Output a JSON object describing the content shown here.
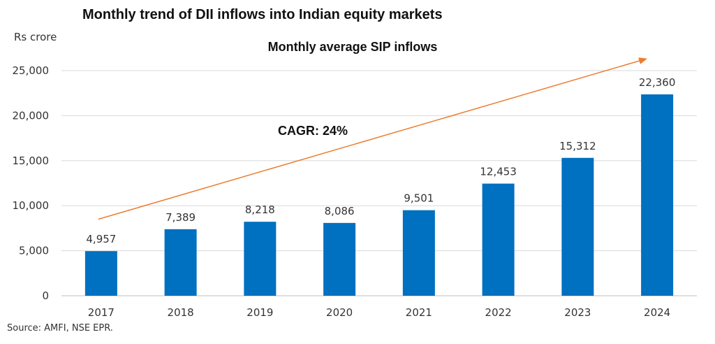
{
  "colors": {
    "bar": "#0070c0",
    "arrow": "#ed7d31",
    "grid": "#d9d9d9"
  },
  "header": {
    "title": "Monthly trend of DII inflows into Indian equity markets",
    "unit_label": "Rs crore",
    "source": "Source: AMFI, NSE EPR."
  },
  "chart_data": {
    "type": "bar",
    "title": "Monthly average SIP inflows",
    "xlabel": "",
    "ylabel": "Rs crore",
    "categories": [
      "2017",
      "2018",
      "2019",
      "2020",
      "2021",
      "2022",
      "2023",
      "2024"
    ],
    "values": [
      4957,
      7389,
      8218,
      8086,
      9501,
      12453,
      15312,
      22360
    ],
    "value_labels": [
      "4,957",
      "7,389",
      "8,218",
      "8,086",
      "9,501",
      "12,453",
      "15,312",
      "22,360"
    ],
    "ylim": [
      0,
      25000
    ],
    "yticks": [
      0,
      5000,
      10000,
      15000,
      20000,
      25000
    ],
    "ytick_labels": [
      "0",
      "5,000",
      "10,000",
      "15,000",
      "20,000",
      "25,000"
    ],
    "grid": true,
    "annotation": {
      "text": "CAGR: 24%",
      "arrow_start": {
        "x": "2017",
        "y": 8500
      },
      "arrow_end": {
        "x": "2024",
        "y": 26300
      }
    }
  }
}
